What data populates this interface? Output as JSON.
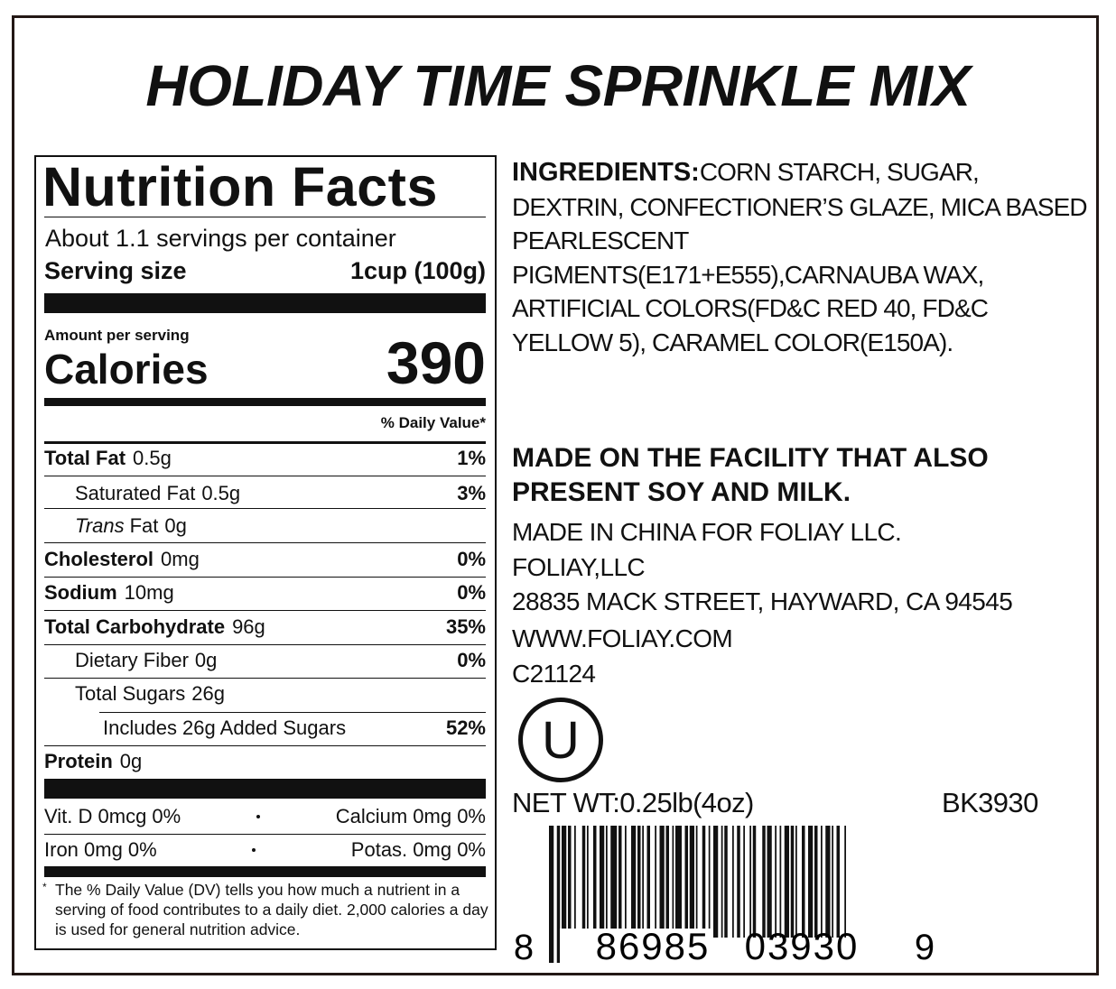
{
  "title": "HOLIDAY TIME SPRINKLE MIX",
  "nutrition": {
    "heading": "Nutrition Facts",
    "servings": "About 1.1 servings per container",
    "serving_size_label": "Serving size",
    "serving_size": "1cup (100g)",
    "amount_per_serving": "Amount per serving",
    "calories_label": "Calories",
    "calories": "390",
    "dv_header": "% Daily Value*",
    "rows": [
      {
        "name": "Total Fat",
        "amount": "0.5g",
        "dv": "1%"
      },
      {
        "name": "Saturated Fat",
        "amount": "0.5g",
        "dv": "3%"
      },
      {
        "name_italic": "Trans",
        "name": "Fat",
        "amount": "0g"
      },
      {
        "name": "Cholesterol",
        "amount": "0mg",
        "dv": "0%"
      },
      {
        "name": "Sodium",
        "amount": "10mg",
        "dv": "0%"
      },
      {
        "name": "Total Carbohydrate",
        "amount": "96g",
        "dv": "35%"
      },
      {
        "name": "Dietary Fiber",
        "amount": "0g",
        "dv": "0%"
      },
      {
        "name": "Total Sugars",
        "amount": "26g"
      },
      {
        "name": "Includes 26g Added Sugars",
        "dv": "52%"
      },
      {
        "name": "Protein",
        "amount": "0g"
      }
    ],
    "vitamins": [
      "Vit. D 0mcg 0%",
      "Calcium 0mg 0%",
      "Iron 0mg 0%",
      "Potas. 0mg 0%"
    ],
    "footnote_mark": "*",
    "footnote": "The % Daily Value (DV) tells you how much a nutrient in a serving of food contributes to a daily diet. 2,000 calories a day is used for general nutrition advice."
  },
  "ingredients": {
    "label": "INGREDIENTS:",
    "text": "CORN STARCH, SUGAR, DEXTRIN, CONFECTIONER’S GLAZE, MICA BASED PEARLESCENT PIGMENTS(E171+E555),CARNAUBA WAX, ARTIFICIAL COLORS(FD&C RED 40, FD&C YELLOW 5), CARAMEL COLOR(E150A)."
  },
  "allergen": "MADE ON THE FACILITY THAT ALSO PRESENT SOY AND MILK.",
  "info": [
    "MADE IN CHINA FOR FOLIAY LLC.",
    "FOLIAY,LLC",
    "28835 MACK STREET, HAYWARD, CA 94545",
    "WWW.FOLIAY.COM",
    "C21124"
  ],
  "kosher": "U",
  "net_weight": "NET WT:0.25lb(4oz)",
  "product_code": "BK3930",
  "barcode": [
    "8",
    "86985",
    "03930",
    "9"
  ]
}
